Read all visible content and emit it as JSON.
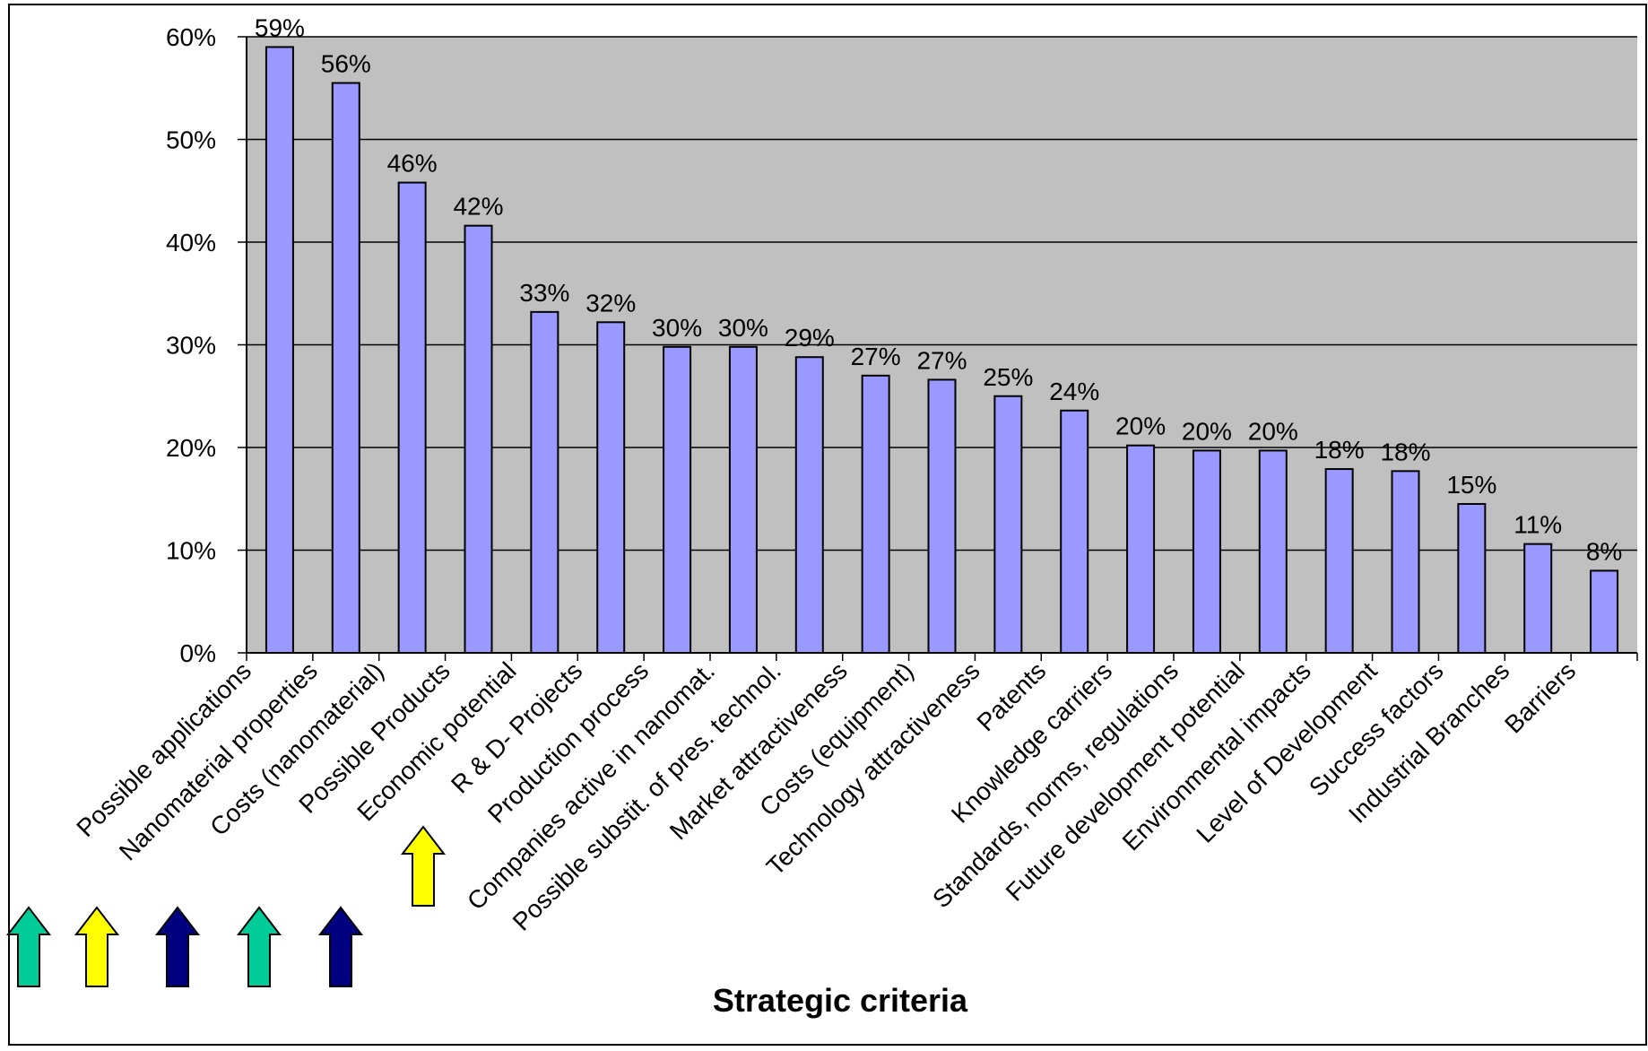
{
  "chart_data": {
    "type": "bar",
    "title": "",
    "xlabel": "Strategic criteria",
    "ylabel": "",
    "ylim": [
      0,
      0.6
    ],
    "y_ticks": [
      0,
      0.1,
      0.2,
      0.3,
      0.4,
      0.5,
      0.6
    ],
    "y_tick_labels": [
      "0%",
      "10%",
      "20%",
      "30%",
      "40%",
      "50%",
      "60%"
    ],
    "grid": true,
    "legend": "none",
    "categories": [
      "Possible applications",
      "Nanomaterial properties",
      "Costs (nanomaterial)",
      "Possible Products",
      "Economic potential",
      "R & D- Projects",
      "Production process",
      "Companies active in nanomat.",
      "Possible substit. of pres. technol.",
      "Market attractiveness",
      "Costs (equipment)",
      "Technology attractiveness",
      "Patents",
      "Knowledge carriers",
      "Standards, norms, regulations",
      "Future development potential",
      "Environmental impacts",
      "Level of Development",
      "Success factors",
      "Industrial Branches",
      "Barriers"
    ],
    "values": [
      0.59,
      0.555,
      0.458,
      0.416,
      0.332,
      0.322,
      0.298,
      0.298,
      0.288,
      0.27,
      0.266,
      0.25,
      0.236,
      0.202,
      0.197,
      0.197,
      0.179,
      0.177,
      0.145,
      0.106,
      0.08
    ],
    "data_labels": [
      "59%",
      "56%",
      "46%",
      "42%",
      "33%",
      "32%",
      "30%",
      "30%",
      "29%",
      "27%",
      "27%",
      "25%",
      "24%",
      "20%",
      "20%",
      "20%",
      "18%",
      "18%",
      "15%",
      "11%",
      "8%"
    ],
    "colors": {
      "bar_fill": "#9999ff",
      "bar_stroke": "#000000",
      "plot_background": "#c0c0c0",
      "grid": "#000000"
    },
    "arrows": [
      {
        "color": "#00cc99"
      },
      {
        "color": "#ffff00"
      },
      {
        "color": "#000080"
      },
      {
        "color": "#00cc99"
      },
      {
        "color": "#000080"
      },
      {
        "color": "#ffff00"
      }
    ]
  }
}
